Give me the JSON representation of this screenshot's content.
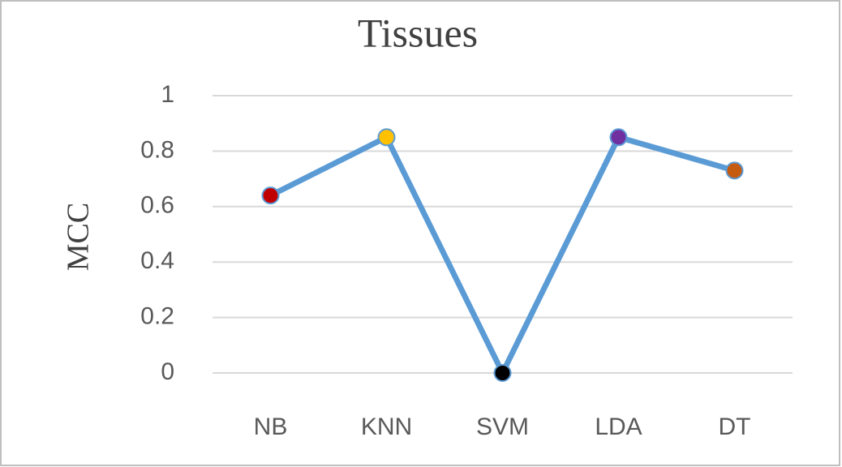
{
  "chart_data": {
    "type": "line",
    "title": "Tissues",
    "y_label": "MCC",
    "categories": [
      "NB",
      "KNN",
      "SVM",
      "LDA",
      "DT"
    ],
    "values": [
      0.64,
      0.85,
      0,
      0.85,
      0.73
    ],
    "color": "#5b9bd5",
    "point_colors": [
      "#c00000",
      "#ffc000",
      "#000000",
      "#7030a0",
      "#c55a11"
    ],
    "ylim": [
      0,
      1
    ],
    "yticks": [
      0,
      0.2,
      0.4,
      0.6,
      0.8,
      1
    ],
    "grid": true
  }
}
